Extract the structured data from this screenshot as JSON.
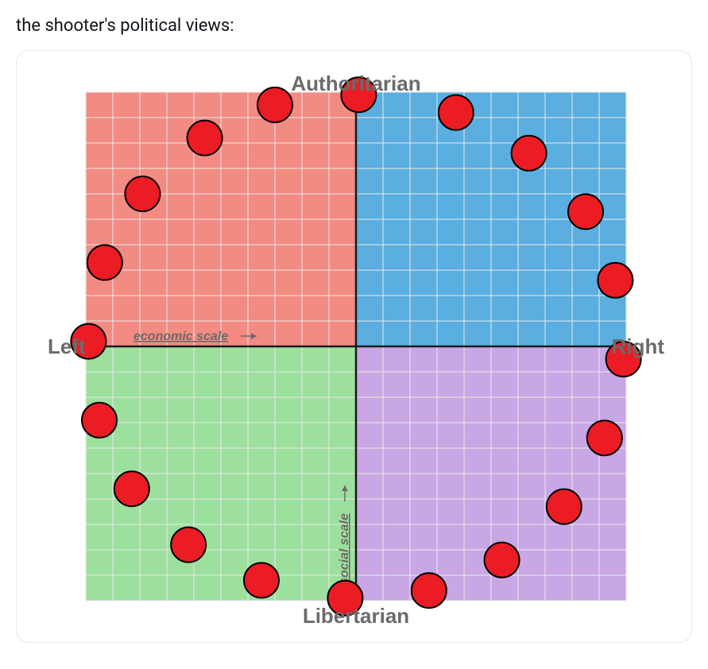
{
  "caption": "the shooter's political views:",
  "chart": {
    "type": "political-compass-scatter",
    "labels": {
      "top": "Authoritarian",
      "bottom": "Libertarian",
      "left": "Left",
      "right": "Right",
      "x_scale": "economic scale",
      "y_scale": "social scale"
    },
    "label_fontsize": 26,
    "scale_label_fontsize": 16,
    "quadrant_colors": {
      "top_left": "#f28b82",
      "top_right": "#5aaee0",
      "bottom_left": "#9de09d",
      "bottom_right": "#c9a6e4"
    },
    "grid_color": "#e9e9e9",
    "axis_color": "#1a1a1a",
    "background_color": "#ffffff",
    "xlim": [
      -10,
      10
    ],
    "ylim": [
      -10,
      10
    ],
    "grid_step": 1,
    "point_style": {
      "fill": "#ec1c24",
      "stroke": "#000000",
      "stroke_width": 2,
      "radius": 22
    },
    "points": [
      {
        "x": 0.1,
        "y": 9.9
      },
      {
        "x": -3.0,
        "y": 9.5
      },
      {
        "x": -5.6,
        "y": 8.2
      },
      {
        "x": -7.9,
        "y": 6.0
      },
      {
        "x": -9.3,
        "y": 3.3
      },
      {
        "x": -9.9,
        "y": 0.2
      },
      {
        "x": -9.5,
        "y": -2.9
      },
      {
        "x": -8.3,
        "y": -5.6
      },
      {
        "x": -6.2,
        "y": -7.8
      },
      {
        "x": -3.5,
        "y": -9.2
      },
      {
        "x": -0.4,
        "y": -9.9
      },
      {
        "x": 2.7,
        "y": -9.6
      },
      {
        "x": 5.4,
        "y": -8.4
      },
      {
        "x": 7.7,
        "y": -6.3
      },
      {
        "x": 9.2,
        "y": -3.6
      },
      {
        "x": 9.9,
        "y": -0.5
      },
      {
        "x": 9.6,
        "y": 2.6
      },
      {
        "x": 8.5,
        "y": 5.3
      },
      {
        "x": 6.4,
        "y": 7.6
      },
      {
        "x": 3.7,
        "y": 9.2
      }
    ]
  }
}
